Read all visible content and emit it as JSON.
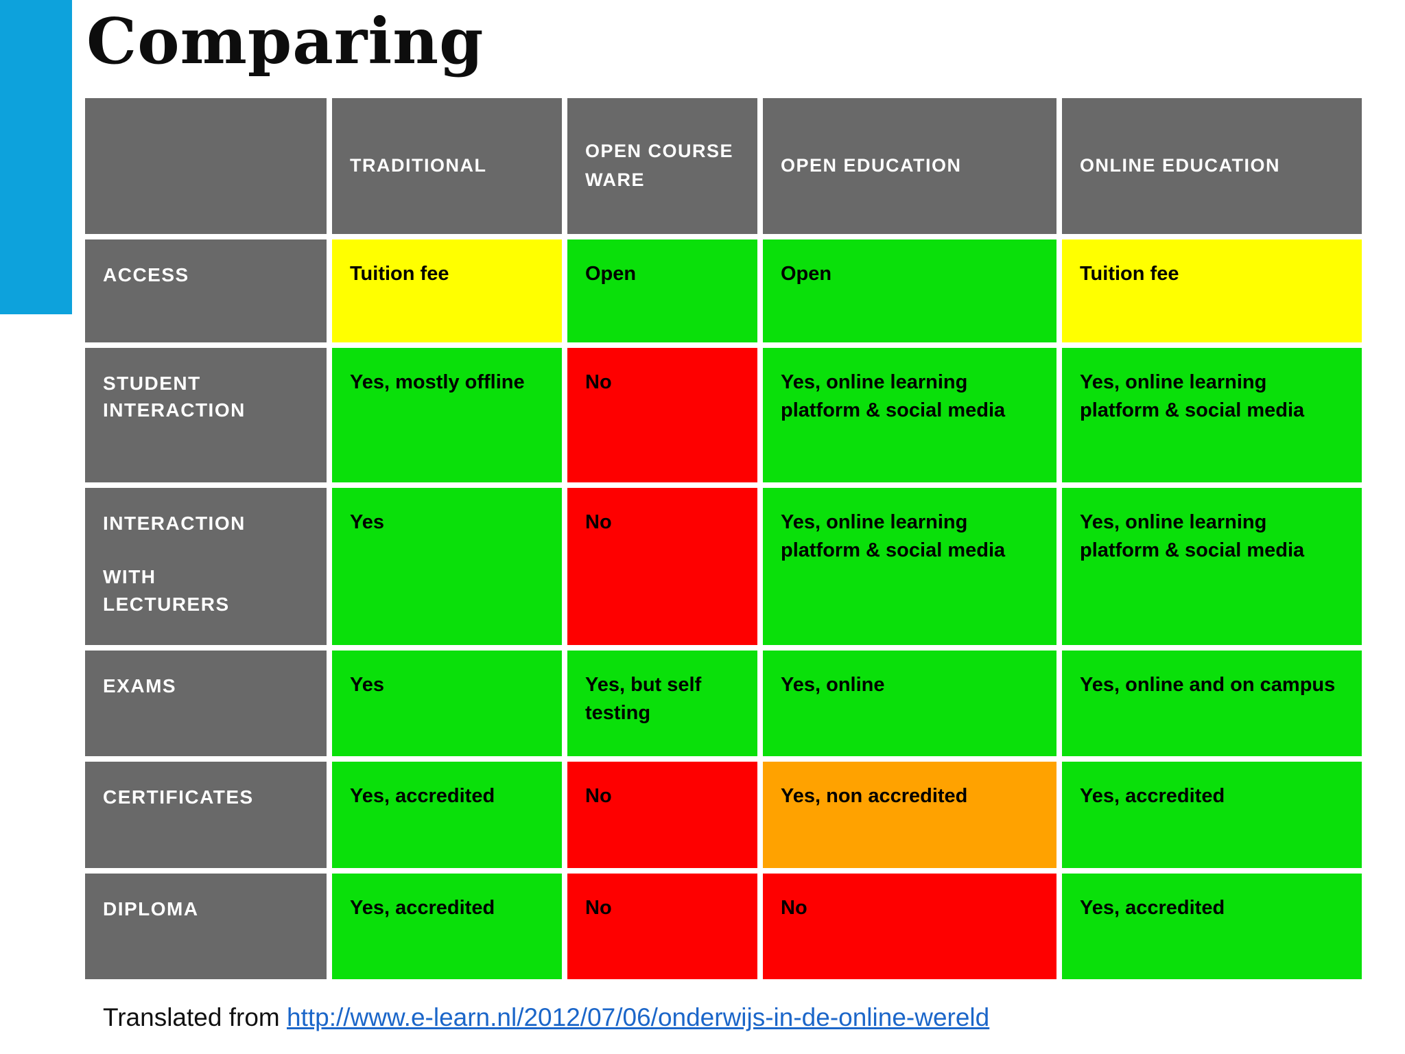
{
  "title": "Comparing",
  "footer": {
    "prefix": "Translated from ",
    "link_text": "http://www.e-learn.nl/2012/07/06/onderwijs-in-de-online-wereld"
  },
  "colors": {
    "accent_bar": "#0DA2DC",
    "header_gray": "#696969",
    "green": "#0AE00A",
    "yellow": "#FFFF00",
    "red": "#FE0000",
    "orange": "#FFA200",
    "link_blue": "#1B66C9"
  },
  "table": {
    "columns": [
      "",
      "TRADITIONAL",
      "OPEN COURSE WARE",
      "OPEN EDUCATION",
      "ONLINE EDUCATION"
    ],
    "rows": [
      {
        "label": "ACCESS",
        "cells": [
          {
            "text": "Tuition fee",
            "color": "yellow"
          },
          {
            "text": "Open",
            "color": "green"
          },
          {
            "text": "Open",
            "color": "green"
          },
          {
            "text": "Tuition fee",
            "color": "yellow"
          }
        ]
      },
      {
        "label": "STUDENT INTERACTION",
        "cells": [
          {
            "text": "Yes, mostly offline",
            "color": "green"
          },
          {
            "text": "No",
            "color": "red"
          },
          {
            "text": "Yes,  online learning platform & social media",
            "color": "green"
          },
          {
            "text": "Yes,  online learning platform & social media",
            "color": "green"
          }
        ]
      },
      {
        "label": "INTERACTION\n\nWITH\nLECTURERS",
        "cells": [
          {
            "text": "Yes",
            "color": "green"
          },
          {
            "text": "No",
            "color": "red"
          },
          {
            "text": "Yes,  online learning platform & social media",
            "color": "green"
          },
          {
            "text": "Yes,  online learning platform & social media",
            "color": "green"
          }
        ]
      },
      {
        "label": "EXAMS",
        "cells": [
          {
            "text": "Yes",
            "color": "green"
          },
          {
            "text": "Yes, but self testing",
            "color": "green"
          },
          {
            "text": "Yes, online",
            "color": "green"
          },
          {
            "text": "Yes, online and on campus",
            "color": "green"
          }
        ]
      },
      {
        "label": "CERTIFICATES",
        "cells": [
          {
            "text": "Yes, accredited",
            "color": "green"
          },
          {
            "text": "No",
            "color": "red"
          },
          {
            "text": "Yes, non accredited",
            "color": "orange"
          },
          {
            "text": "Yes, accredited",
            "color": "green"
          }
        ]
      },
      {
        "label": "DIPLOMA",
        "cells": [
          {
            "text": "Yes, accredited",
            "color": "green"
          },
          {
            "text": "No",
            "color": "red"
          },
          {
            "text": "No",
            "color": "red"
          },
          {
            "text": "Yes, accredited",
            "color": "green"
          }
        ]
      }
    ]
  }
}
